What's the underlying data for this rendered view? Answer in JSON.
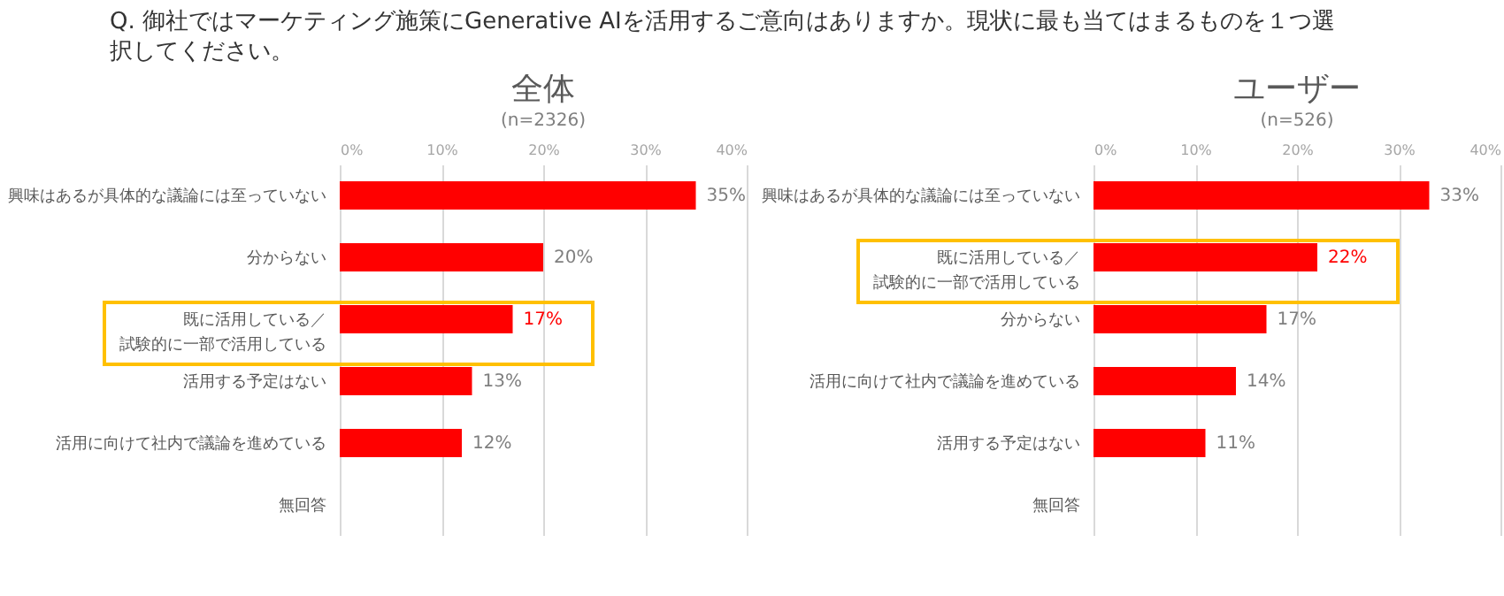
{
  "chart_data": [
    {
      "type": "bar",
      "orientation": "horizontal",
      "title": "全体",
      "subtitle": "(n=2326)",
      "annotations": [
        "Q. 御社ではマーケティング施策にGenerative AIを活用するご意向はありますか。現状に最も当てはまるものを１つ選択してください。"
      ],
      "categories": [
        "興味はあるが具体的な議論には至っていない",
        "分からない",
        "既に活用している／試験的に一部で活用している",
        "活用する予定はない",
        "活用に向けて社内で議論を進めている",
        "無回答"
      ],
      "values": [
        35,
        20,
        17,
        13,
        12,
        0
      ],
      "value_labels": [
        "35%",
        "20%",
        "17%",
        "13%",
        "12%",
        null
      ],
      "color": "#ff0000",
      "xlim": [
        0,
        40
      ],
      "xticks": [
        {
          "value": 0,
          "label": "0%"
        },
        {
          "value": 10,
          "label": "10%"
        },
        {
          "value": 20,
          "label": "20%"
        },
        {
          "value": 30,
          "label": "30%"
        },
        {
          "value": 40,
          "label": "40%"
        }
      ],
      "grid": "x"
    },
    {
      "type": "bar",
      "orientation": "horizontal",
      "title": "ユーザー",
      "subtitle": "(n=526)",
      "categories": [
        "興味はあるが具体的な議論には至っていない",
        "既に活用している／試験的に一部で活用している",
        "分からない",
        "活用に向けて社内で議論を進めている",
        "活用する予定はない",
        "無回答"
      ],
      "values": [
        33,
        22,
        17,
        14,
        11,
        0
      ],
      "value_labels": [
        "33%",
        "22%",
        "17%",
        "14%",
        "11%",
        null
      ],
      "color": "#ff0000",
      "xlim": [
        0,
        40
      ],
      "xticks": [
        {
          "value": 0,
          "label": "0%"
        },
        {
          "value": 10,
          "label": "10%"
        },
        {
          "value": 20,
          "label": "20%"
        },
        {
          "value": 30,
          "label": "30%"
        },
        {
          "value": 40,
          "label": "40%"
        }
      ],
      "grid": "x"
    }
  ]
}
